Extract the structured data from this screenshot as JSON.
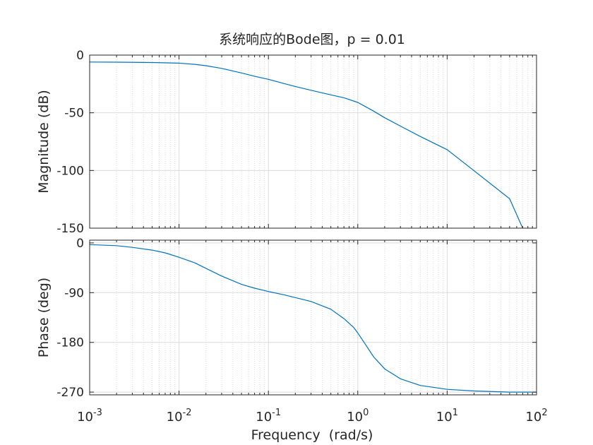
{
  "figure": {
    "title": "系统响应的Bode图，p = 0.01",
    "xlabel": "Frequency  (rad/s)"
  },
  "chart_data": [
    {
      "type": "line",
      "title": "系统响应的Bode图，p = 0.01",
      "ylabel": "Magnitude (dB)",
      "xlabel": "",
      "xscale": "log",
      "xlim": [
        0.001,
        100
      ],
      "ylim": [
        -150,
        0
      ],
      "yticks": [
        0,
        -50,
        -100,
        -150
      ],
      "ytick_labels": [
        "0",
        "-50",
        "-100",
        "-150"
      ],
      "grid": true,
      "color": "#0072BD",
      "series": [
        {
          "x": [
            0.001,
            0.002,
            0.005,
            0.01,
            0.015,
            0.02,
            0.03,
            0.05,
            0.07,
            0.1,
            0.15,
            0.2,
            0.3,
            0.5,
            0.7,
            1.0,
            1.5,
            2,
            3,
            5,
            10,
            20,
            50,
            70
          ],
          "y": [
            -6.0,
            -6.1,
            -6.4,
            -7.0,
            -8.0,
            -9.2,
            -11.5,
            -15.5,
            -18.3,
            -21.0,
            -24.7,
            -27.2,
            -30.5,
            -34.5,
            -37.0,
            -41.0,
            -48.5,
            -54.3,
            -61.5,
            -70.5,
            -82.0,
            -100.2,
            -124.5,
            -150.0
          ]
        }
      ]
    },
    {
      "type": "line",
      "ylabel": "Phase (deg)",
      "xlabel": "Frequency  (rad/s)",
      "xscale": "log",
      "xlim": [
        0.001,
        100
      ],
      "ylim": [
        -275,
        5
      ],
      "yticks": [
        0,
        -90,
        -180,
        -270
      ],
      "ytick_labels": [
        "0",
        "-90",
        "-180",
        "-270"
      ],
      "xticks": [
        0.001,
        0.01,
        0.1,
        1,
        10,
        100
      ],
      "xtick_labels": [
        {
          "base": "10",
          "exp": "-3"
        },
        {
          "base": "10",
          "exp": "-2"
        },
        {
          "base": "10",
          "exp": "-1"
        },
        {
          "base": "10",
          "exp": "0"
        },
        {
          "base": "10",
          "exp": "1"
        },
        {
          "base": "10",
          "exp": "2"
        }
      ],
      "grid": true,
      "color": "#0072BD",
      "series": [
        {
          "x": [
            0.001,
            0.002,
            0.003,
            0.005,
            0.007,
            0.01,
            0.015,
            0.02,
            0.03,
            0.05,
            0.07,
            0.1,
            0.15,
            0.2,
            0.3,
            0.5,
            0.7,
            0.9,
            1.0,
            1.2,
            1.5,
            2,
            3,
            5,
            10,
            20,
            50,
            100
          ],
          "y": [
            -3,
            -5,
            -8,
            -13,
            -18,
            -26,
            -36,
            -46,
            -60,
            -75,
            -82,
            -88,
            -94,
            -99,
            -106,
            -120,
            -137,
            -153,
            -163,
            -182,
            -206,
            -228,
            -246,
            -258,
            -265,
            -268,
            -270,
            -270
          ]
        }
      ]
    }
  ]
}
